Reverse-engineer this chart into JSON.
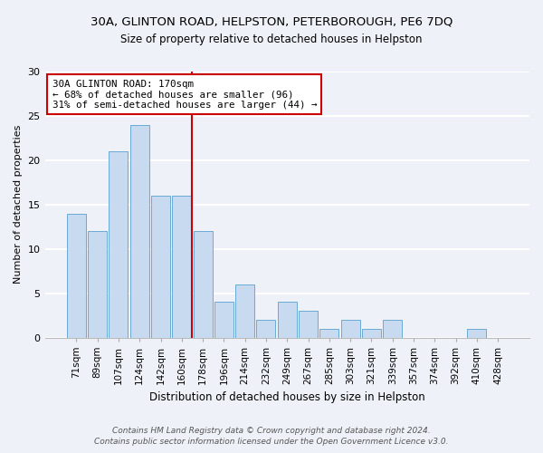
{
  "title": "30A, GLINTON ROAD, HELPSTON, PETERBOROUGH, PE6 7DQ",
  "subtitle": "Size of property relative to detached houses in Helpston",
  "xlabel": "Distribution of detached houses by size in Helpston",
  "ylabel": "Number of detached properties",
  "bin_labels": [
    "71sqm",
    "89sqm",
    "107sqm",
    "124sqm",
    "142sqm",
    "160sqm",
    "178sqm",
    "196sqm",
    "214sqm",
    "232sqm",
    "249sqm",
    "267sqm",
    "285sqm",
    "303sqm",
    "321sqm",
    "339sqm",
    "357sqm",
    "374sqm",
    "392sqm",
    "410sqm",
    "428sqm"
  ],
  "bin_values": [
    14,
    12,
    21,
    24,
    16,
    16,
    12,
    4,
    6,
    2,
    4,
    3,
    1,
    2,
    1,
    2,
    0,
    0,
    0,
    1,
    0
  ],
  "bar_color": "#c8daf0",
  "bar_edge_color": "#6aaad4",
  "vline_x_idx": 5.5,
  "vline_color": "#cc0000",
  "annotation_text": "30A GLINTON ROAD: 170sqm\n← 68% of detached houses are smaller (96)\n31% of semi-detached houses are larger (44) →",
  "annotation_box_color": "white",
  "annotation_box_edge": "#cc0000",
  "ylim": [
    0,
    30
  ],
  "yticks": [
    0,
    5,
    10,
    15,
    20,
    25,
    30
  ],
  "footer_text": "Contains HM Land Registry data © Crown copyright and database right 2024.\nContains public sector information licensed under the Open Government Licence v3.0.",
  "fig_bg_color": "#eef2f8",
  "plot_bg_color": "#eef2f8",
  "grid_color": "#ffffff",
  "title_fontsize": 9.5,
  "subtitle_fontsize": 8.5,
  "xlabel_fontsize": 8.5,
  "ylabel_fontsize": 8,
  "tick_fontsize": 7.5,
  "footer_fontsize": 6.5
}
